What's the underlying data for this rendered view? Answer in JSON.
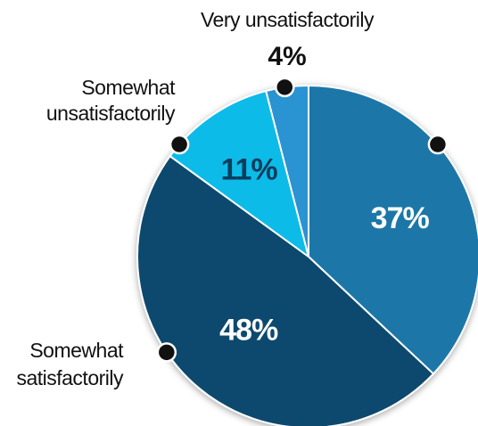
{
  "chart_data": {
    "type": "pie",
    "slices": [
      {
        "label": "",
        "value": 37,
        "display": "37%",
        "color": "#1f77a8",
        "label_color": "#ffffff"
      },
      {
        "label": "Somewhat satisfactorily",
        "value": 48,
        "display": "48%",
        "color": "#0a4a6e",
        "label_color": "#ffffff"
      },
      {
        "label": "Somewhat unsatisfactorily",
        "value": 11,
        "display": "11%",
        "color": "#0cbbe8",
        "label_color": "#0a3d5c"
      },
      {
        "label": "Very unsatisfactorily",
        "value": 4,
        "display": "4%",
        "color": "#2b93d1",
        "label_color": "#111111"
      }
    ],
    "external_labels": {
      "very_unsatisfactorily": {
        "lines": [
          "Very unsatisfactorily"
        ],
        "pct": "4%"
      },
      "somewhat_unsatisfactorily": {
        "lines": [
          "Somewhat",
          "unsatisfactorily"
        ]
      },
      "somewhat_satisfactorily": {
        "lines": [
          "Somewhat",
          "satisfactorily"
        ]
      }
    },
    "colors": {
      "background": "#ffffff",
      "slice_border": "#ffffff",
      "marker": "#111111"
    }
  }
}
